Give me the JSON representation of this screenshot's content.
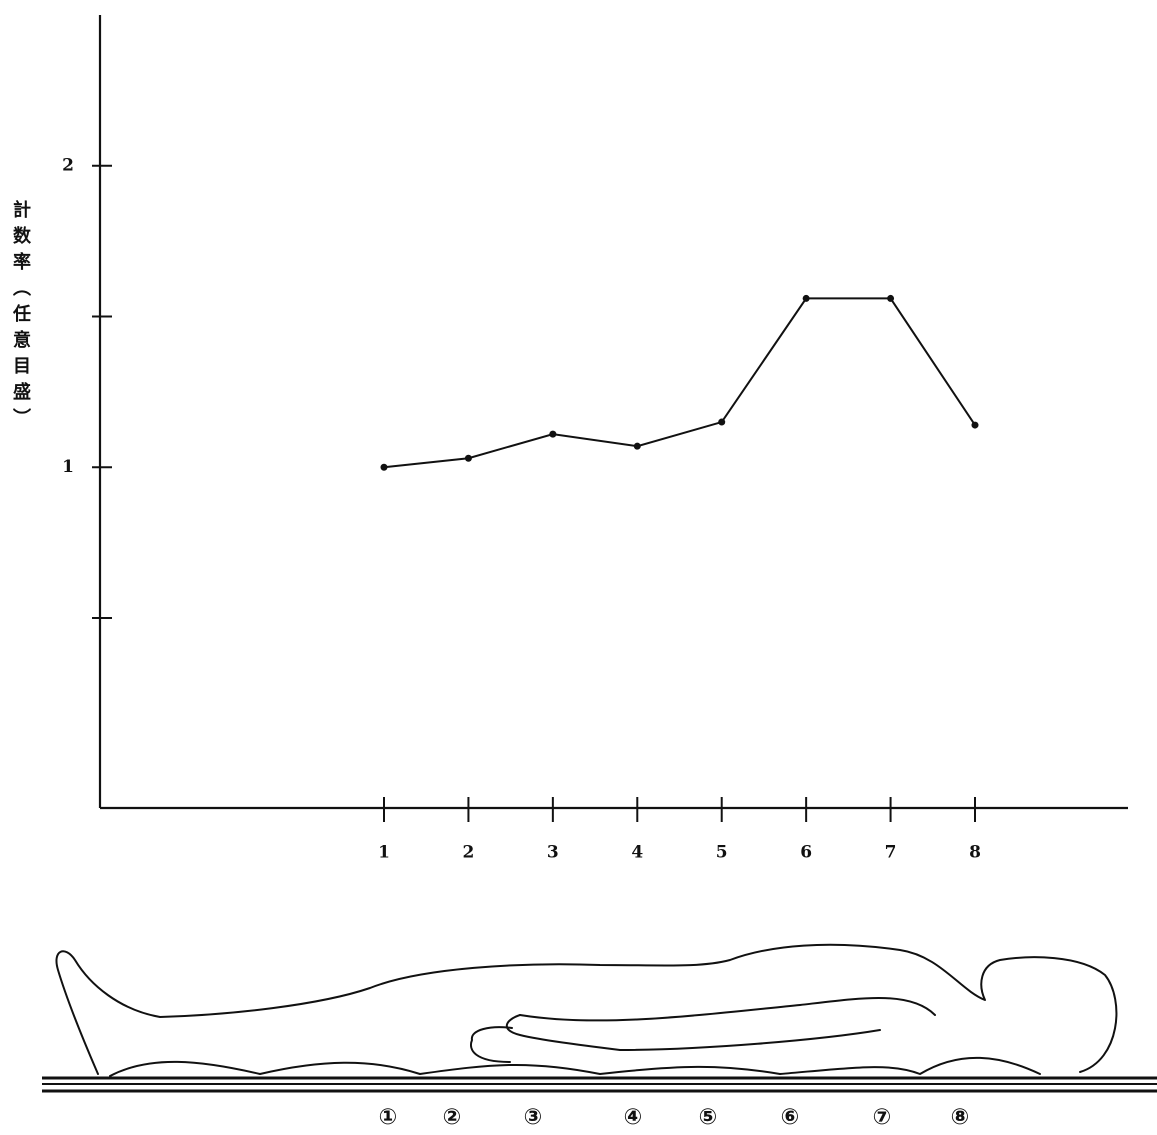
{
  "chart_data": {
    "type": "line",
    "y_label": "計数率（任意目盛）",
    "categories": [
      "1",
      "2",
      "3",
      "4",
      "5",
      "6",
      "7",
      "8"
    ],
    "values": [
      1.0,
      1.03,
      1.11,
      1.07,
      1.15,
      1.56,
      1.56,
      1.14
    ],
    "color": "#111111",
    "ylim": [
      -0.13,
      2.5
    ],
    "yticks": [
      1,
      2
    ],
    "minor_yticks": [
      0.5,
      1.5
    ],
    "grid": false,
    "position_markers": [
      "①",
      "②",
      "③",
      "④",
      "⑤",
      "⑥",
      "⑦",
      "⑧"
    ]
  }
}
